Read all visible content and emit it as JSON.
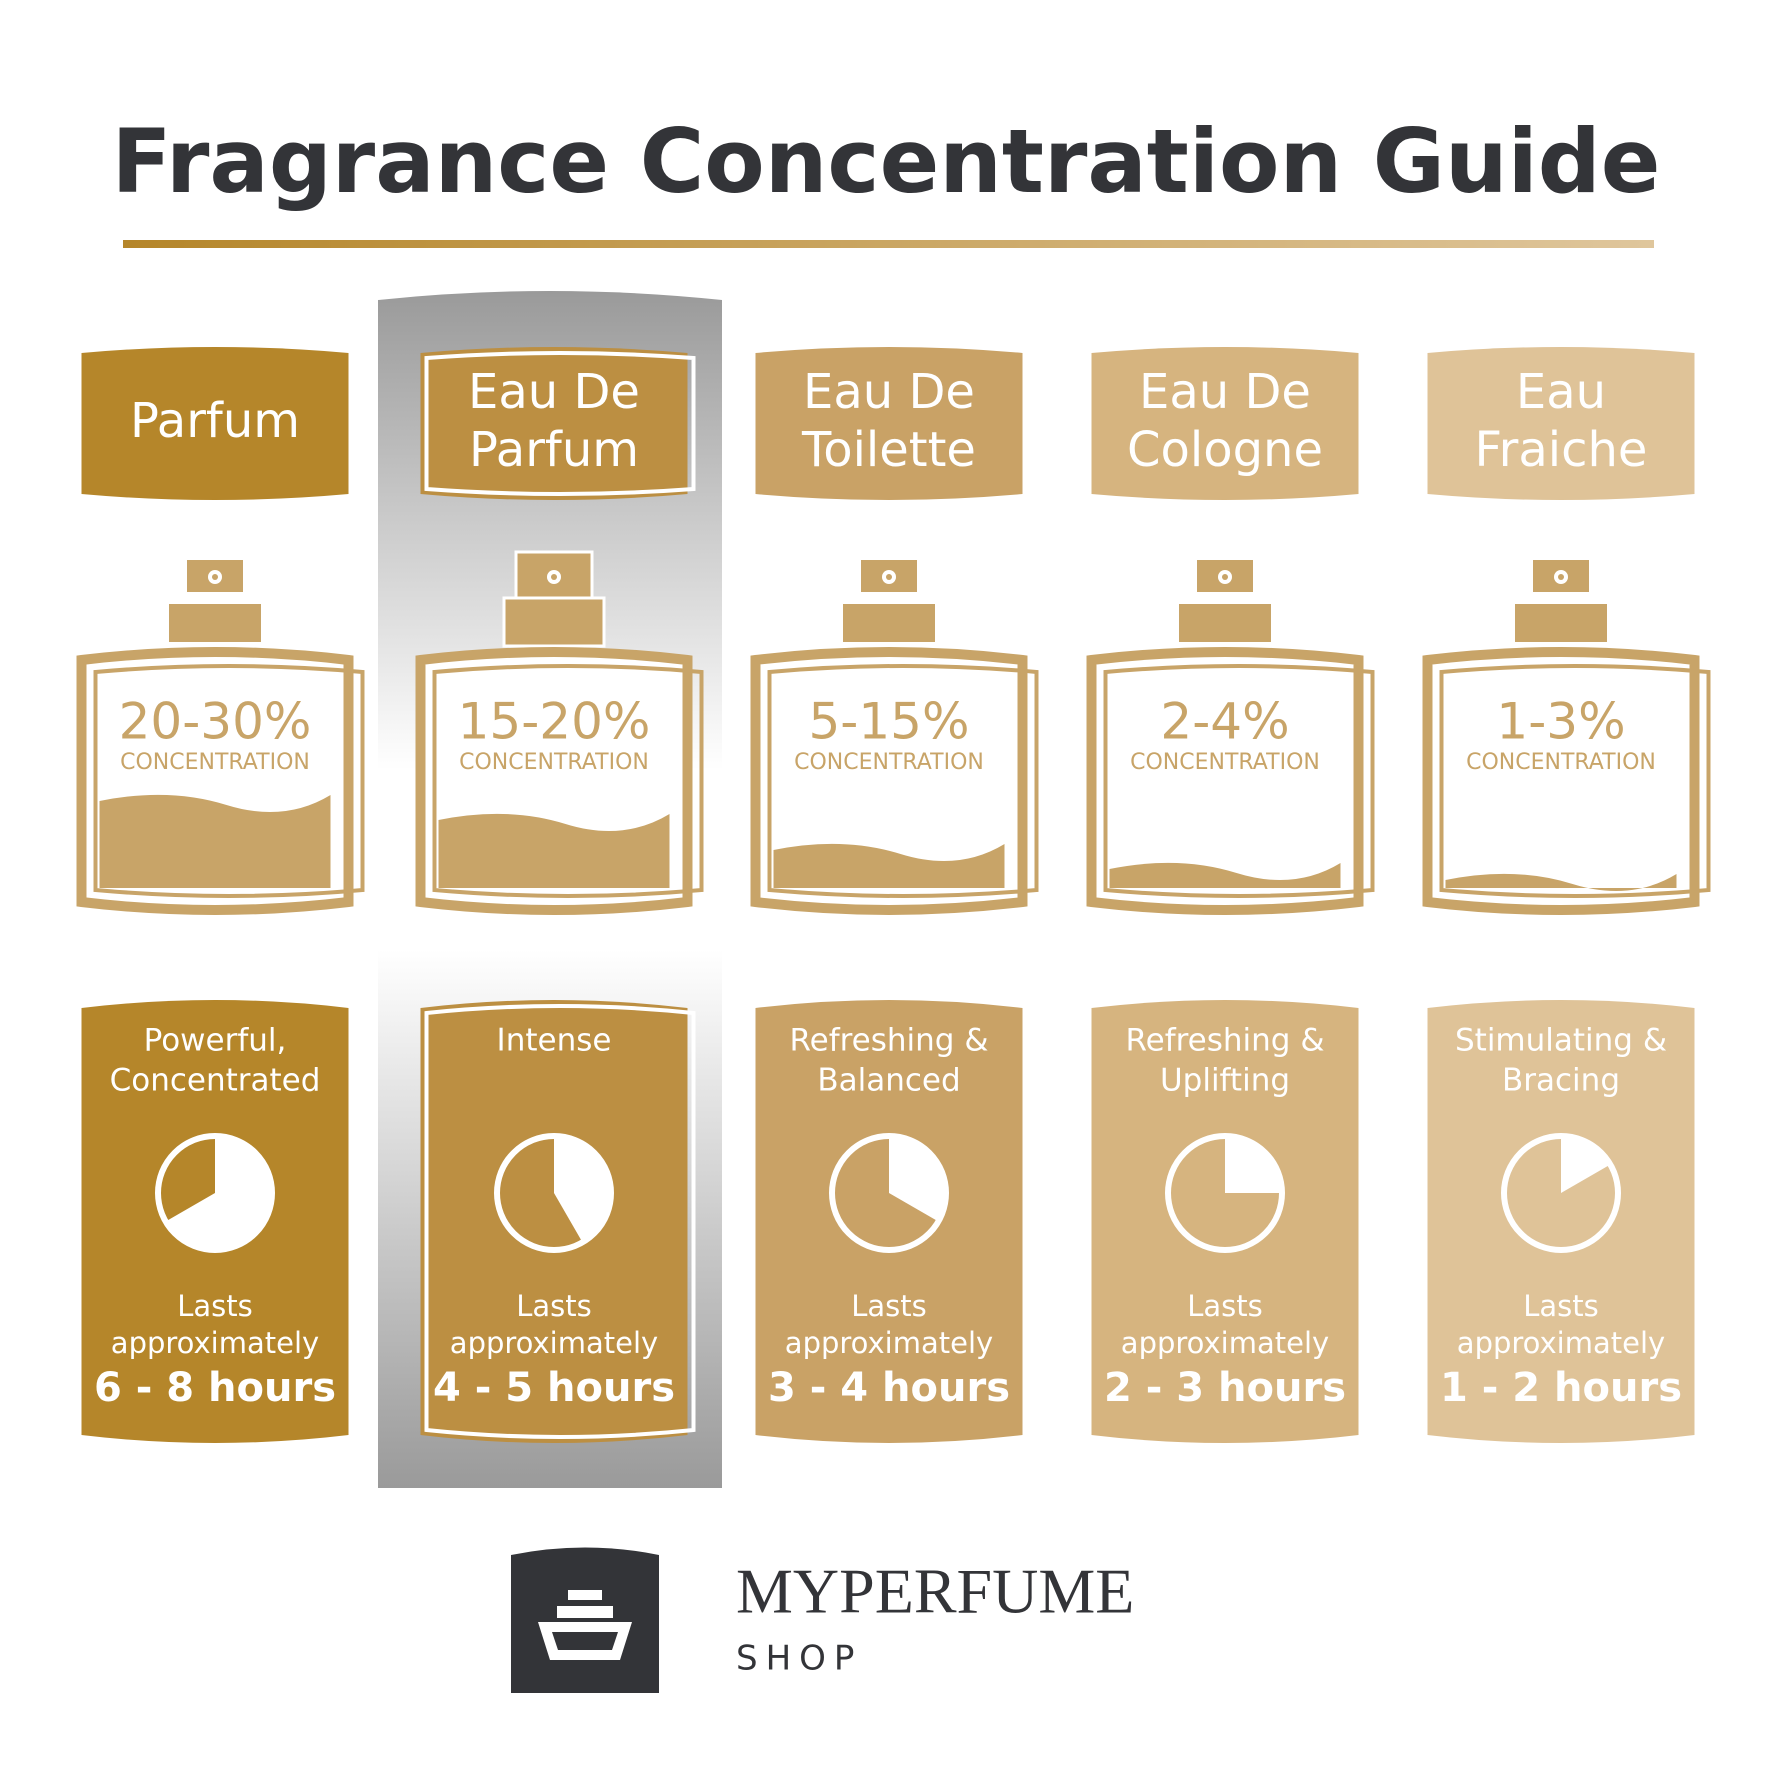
{
  "title": "Fragrance Concentration Guide",
  "columns": [
    {
      "name": [
        "Parfum"
      ],
      "percent": "20-30%",
      "unit": "CONCENTRATION",
      "description": [
        "Powerful,",
        "Concentrated"
      ],
      "lasts": "Lasts",
      "approx": "approximately",
      "duration": "6 - 8 hours"
    },
    {
      "name": [
        "Eau De",
        "Parfum"
      ],
      "percent": "15-20%",
      "unit": "CONCENTRATION",
      "description": [
        "Intense"
      ],
      "lasts": "Lasts",
      "approx": "approximately",
      "duration": "4 - 5 hours"
    },
    {
      "name": [
        "Eau De",
        "Toilette"
      ],
      "percent": "5-15%",
      "unit": "CONCENTRATION",
      "description": [
        "Refreshing &",
        "Balanced"
      ],
      "lasts": "Lasts",
      "approx": "approximately",
      "duration": "3 - 4 hours"
    },
    {
      "name": [
        "Eau De",
        "Cologne"
      ],
      "percent": "2-4%",
      "unit": "CONCENTRATION",
      "description": [
        "Refreshing &",
        "Uplifting"
      ],
      "lasts": "Lasts",
      "approx": "approximately",
      "duration": "2 - 3 hours"
    },
    {
      "name": [
        "Eau",
        "Fraiche"
      ],
      "percent": "1-3%",
      "unit": "CONCENTRATION",
      "description": [
        "Stimulating &",
        "Bracing"
      ],
      "lasts": "Lasts",
      "approx": "approximately",
      "duration": "1 - 2 hours"
    }
  ],
  "logo": {
    "brand": "MYPERFUME",
    "sub": "SHOP"
  }
}
